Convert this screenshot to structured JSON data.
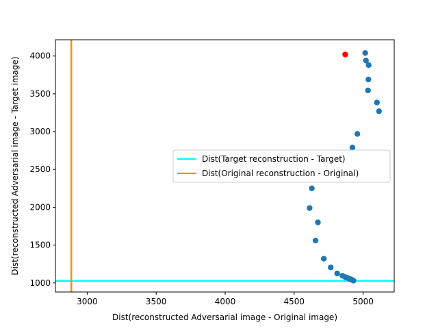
{
  "chart_data": {
    "type": "scatter",
    "xlabel": "Dist(reconstructed Adversarial image - Original image)",
    "ylabel": "Dist(reconstructed Adversarial image - Target image)",
    "xlim": [
      2770,
      5225
    ],
    "ylim": [
      880,
      4215
    ],
    "xticks": [
      3000,
      3500,
      4000,
      4500,
      5000
    ],
    "yticks": [
      1000,
      1500,
      2000,
      2500,
      3000,
      3500,
      4000
    ],
    "grid": false,
    "legend_position": "center-right",
    "series": [
      {
        "type": "scatter",
        "color": "#1f77b4",
        "points": [
          [
            5015,
            4040
          ],
          [
            5020,
            3940
          ],
          [
            5040,
            3880
          ],
          [
            5038,
            3690
          ],
          [
            5035,
            3545
          ],
          [
            5100,
            3385
          ],
          [
            5115,
            3270
          ],
          [
            4958,
            2970
          ],
          [
            4922,
            2790
          ],
          [
            4628,
            2250
          ],
          [
            4612,
            1990
          ],
          [
            4672,
            1800
          ],
          [
            4655,
            1560
          ],
          [
            4715,
            1320
          ],
          [
            4765,
            1205
          ],
          [
            4812,
            1125
          ],
          [
            4850,
            1095
          ],
          [
            4872,
            1075
          ],
          [
            4888,
            1065
          ],
          [
            4900,
            1055
          ],
          [
            4910,
            1048
          ],
          [
            4918,
            1040
          ],
          [
            4925,
            1035
          ],
          [
            4930,
            1030
          ]
        ]
      },
      {
        "type": "scatter",
        "color": "#ff0000",
        "points": [
          [
            4870,
            4020
          ]
        ]
      }
    ],
    "reference_lines": [
      {
        "orientation": "horizontal",
        "value": 1027,
        "color": "#00ffff",
        "name": "Dist(Target reconstruction - Target)"
      },
      {
        "orientation": "vertical",
        "value": 2885,
        "color": "#ff8c00",
        "name": "Dist(Original reconstruction - Original)"
      }
    ]
  }
}
